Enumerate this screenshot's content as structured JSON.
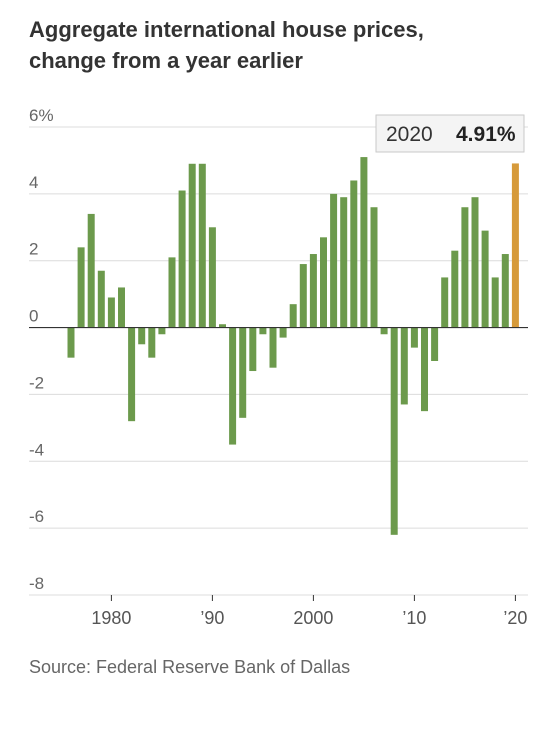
{
  "header": {
    "title_line1": "Aggregate international house prices,",
    "title_line2": "change from a year earlier"
  },
  "footer": {
    "source": "Source: Federal Reserve Bank of Dallas"
  },
  "chart_data": {
    "type": "bar",
    "title": "Aggregate international house prices, change from a year earlier",
    "x": [
      1976,
      1977,
      1978,
      1979,
      1980,
      1981,
      1982,
      1983,
      1984,
      1985,
      1986,
      1987,
      1988,
      1989,
      1990,
      1991,
      1992,
      1993,
      1994,
      1995,
      1996,
      1997,
      1998,
      1999,
      2000,
      2001,
      2002,
      2003,
      2004,
      2005,
      2006,
      2007,
      2008,
      2009,
      2010,
      2011,
      2012,
      2013,
      2014,
      2015,
      2016,
      2017,
      2018,
      2019,
      2020
    ],
    "values": [
      -0.9,
      2.4,
      3.4,
      1.7,
      0.9,
      1.2,
      -2.8,
      -0.5,
      -0.9,
      -0.2,
      2.1,
      4.1,
      4.9,
      4.9,
      3.0,
      0.1,
      -3.5,
      -2.7,
      -1.3,
      -0.2,
      -1.2,
      -0.3,
      0.7,
      1.9,
      2.2,
      2.7,
      4.0,
      3.9,
      4.4,
      5.1,
      3.6,
      -0.2,
      -6.2,
      -2.3,
      -0.6,
      -2.5,
      -1.0,
      1.5,
      2.3,
      3.6,
      3.9,
      2.9,
      1.5,
      2.2,
      4.91
    ],
    "ylim": [
      -8,
      6
    ],
    "yticks": [
      {
        "value": 6,
        "label": "6%"
      },
      {
        "value": 4,
        "label": "4"
      },
      {
        "value": 2,
        "label": "2"
      },
      {
        "value": 0,
        "label": "0"
      },
      {
        "value": -2,
        "label": "-2"
      },
      {
        "value": -4,
        "label": "-4"
      },
      {
        "value": -6,
        "label": "-6"
      },
      {
        "value": -8,
        "label": "-8"
      }
    ],
    "xticks": [
      {
        "value": 1980,
        "label": "1980"
      },
      {
        "value": 1990,
        "label": "’90"
      },
      {
        "value": 2000,
        "label": "2000"
      },
      {
        "value": 2010,
        "label": "’10"
      },
      {
        "value": 2020,
        "label": "’20"
      }
    ],
    "grid": true,
    "bar_color": "#6c9a4c",
    "highlight_color": "#d69a3a",
    "highlight": {
      "year": 2020,
      "year_label": "2020",
      "value_label": "4.91%"
    }
  }
}
